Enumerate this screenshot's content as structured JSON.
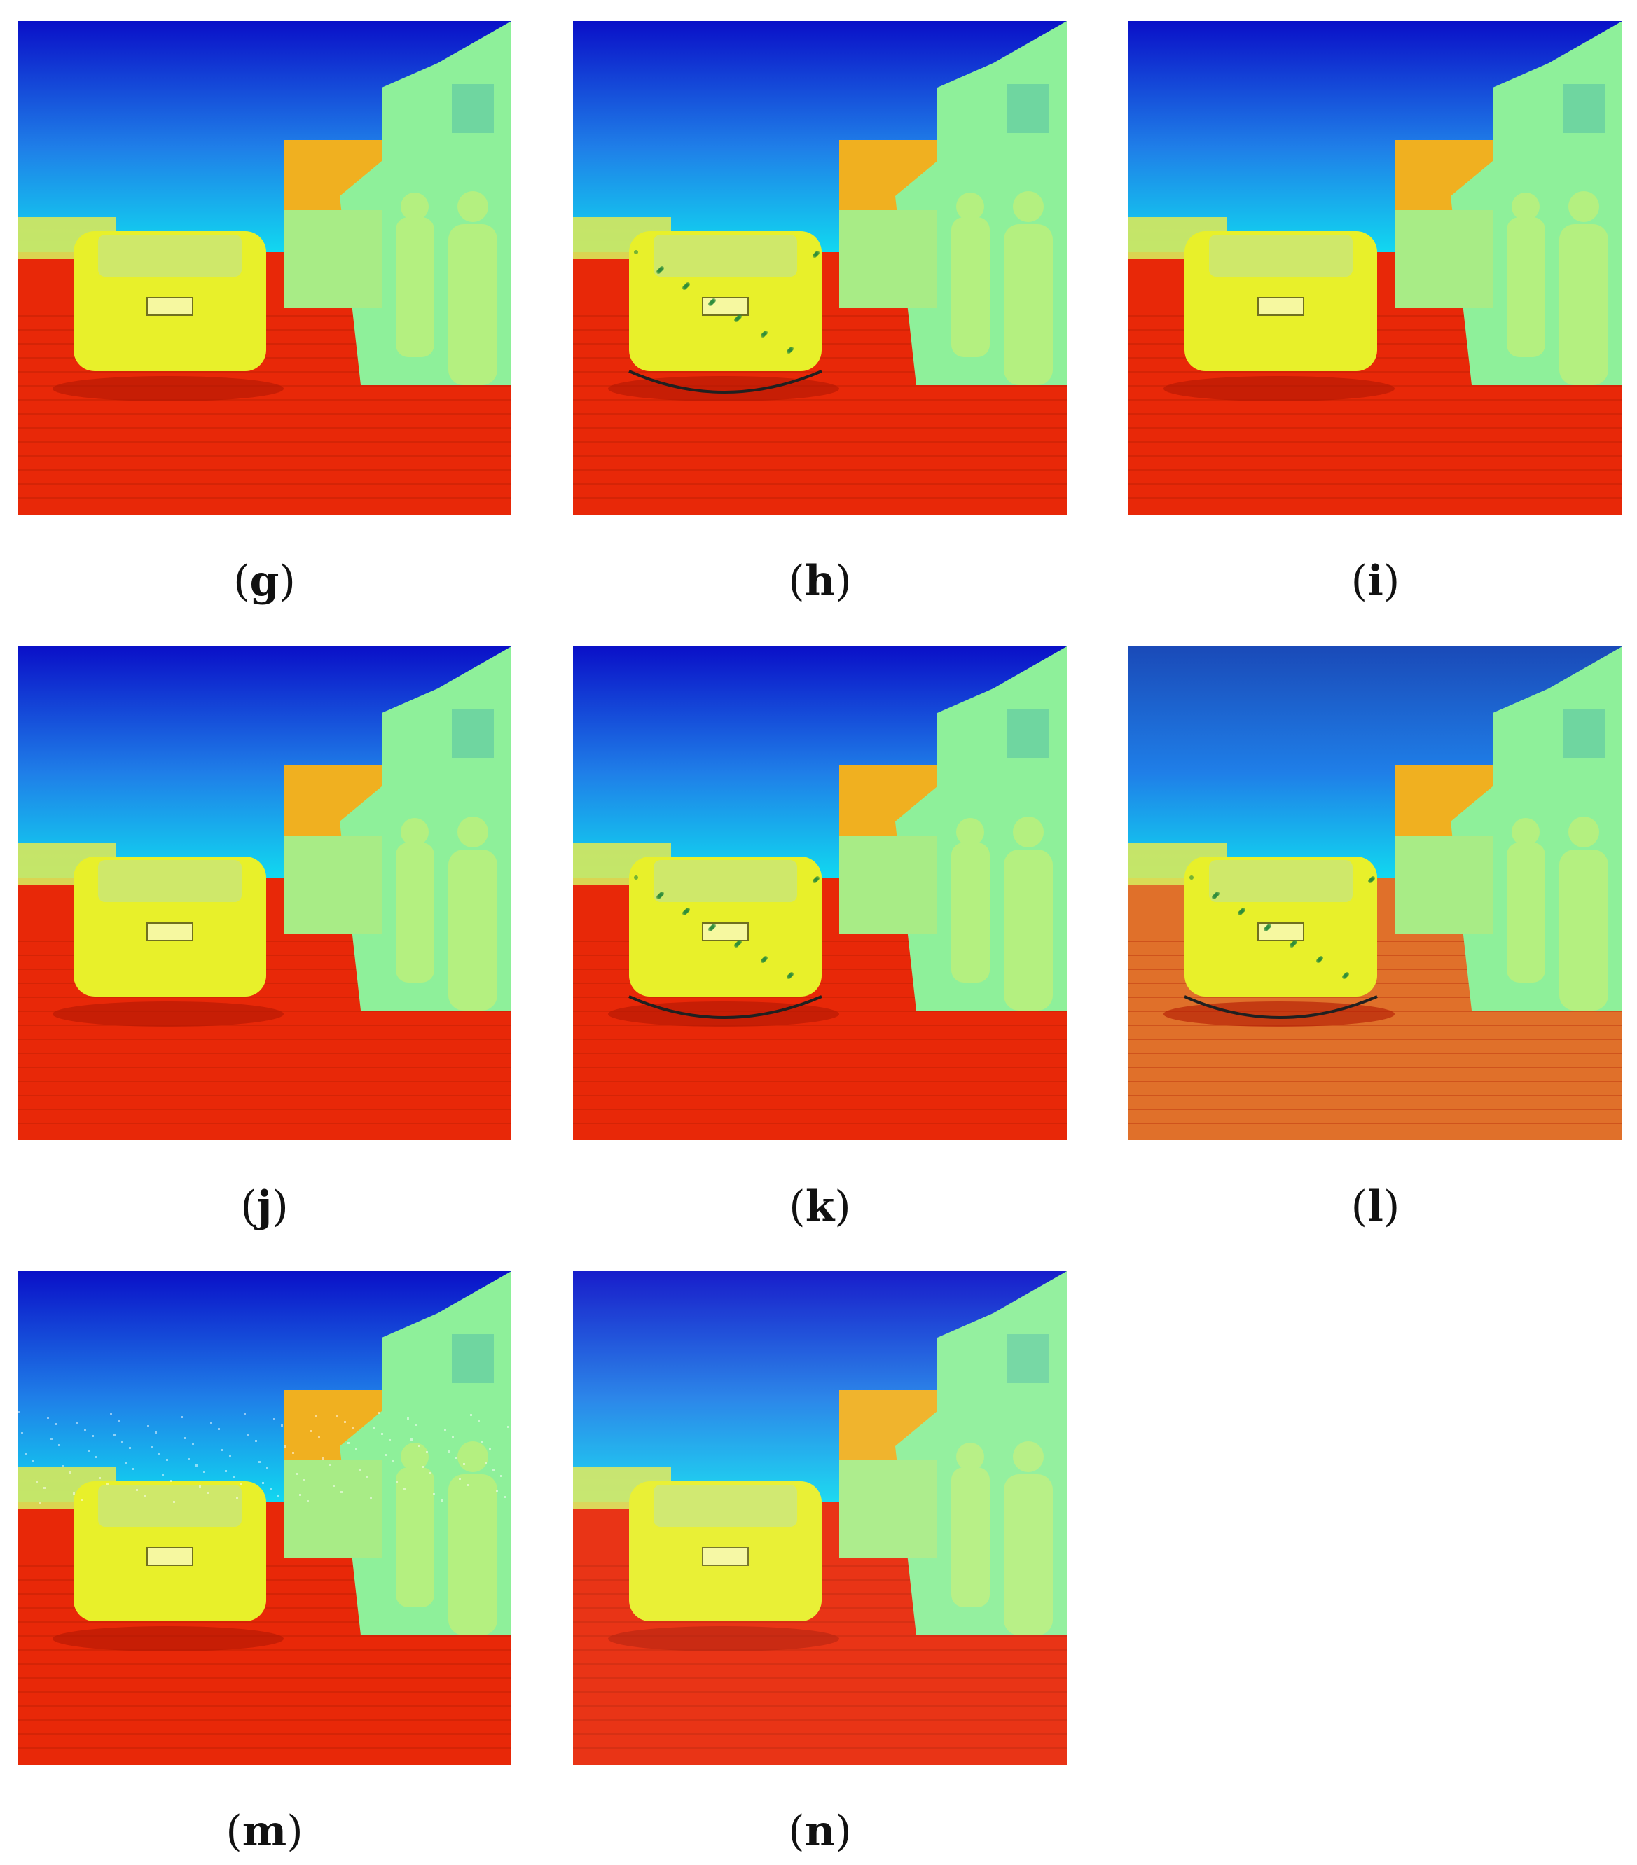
{
  "panels": [
    {
      "id": "g",
      "label": "g",
      "variant": "smooth"
    },
    {
      "id": "h",
      "label": "h",
      "variant": "detailed"
    },
    {
      "id": "i",
      "label": "i",
      "variant": "smooth"
    },
    {
      "id": "j",
      "label": "j",
      "variant": "smooth"
    },
    {
      "id": "k",
      "label": "k",
      "variant": "detailed"
    },
    {
      "id": "l",
      "label": "l",
      "variant": "muted"
    },
    {
      "id": "m",
      "label": "m",
      "variant": "noisy"
    },
    {
      "id": "n",
      "label": "n",
      "variant": "bright"
    }
  ],
  "colors": {
    "sky_top": "#0a10c8",
    "sky_bottom": "#11d8f0",
    "ground": "#e82808",
    "building": "#8ef09a",
    "car": "#e8f02a",
    "roof": "#f0b020",
    "person": "#b4f080"
  }
}
